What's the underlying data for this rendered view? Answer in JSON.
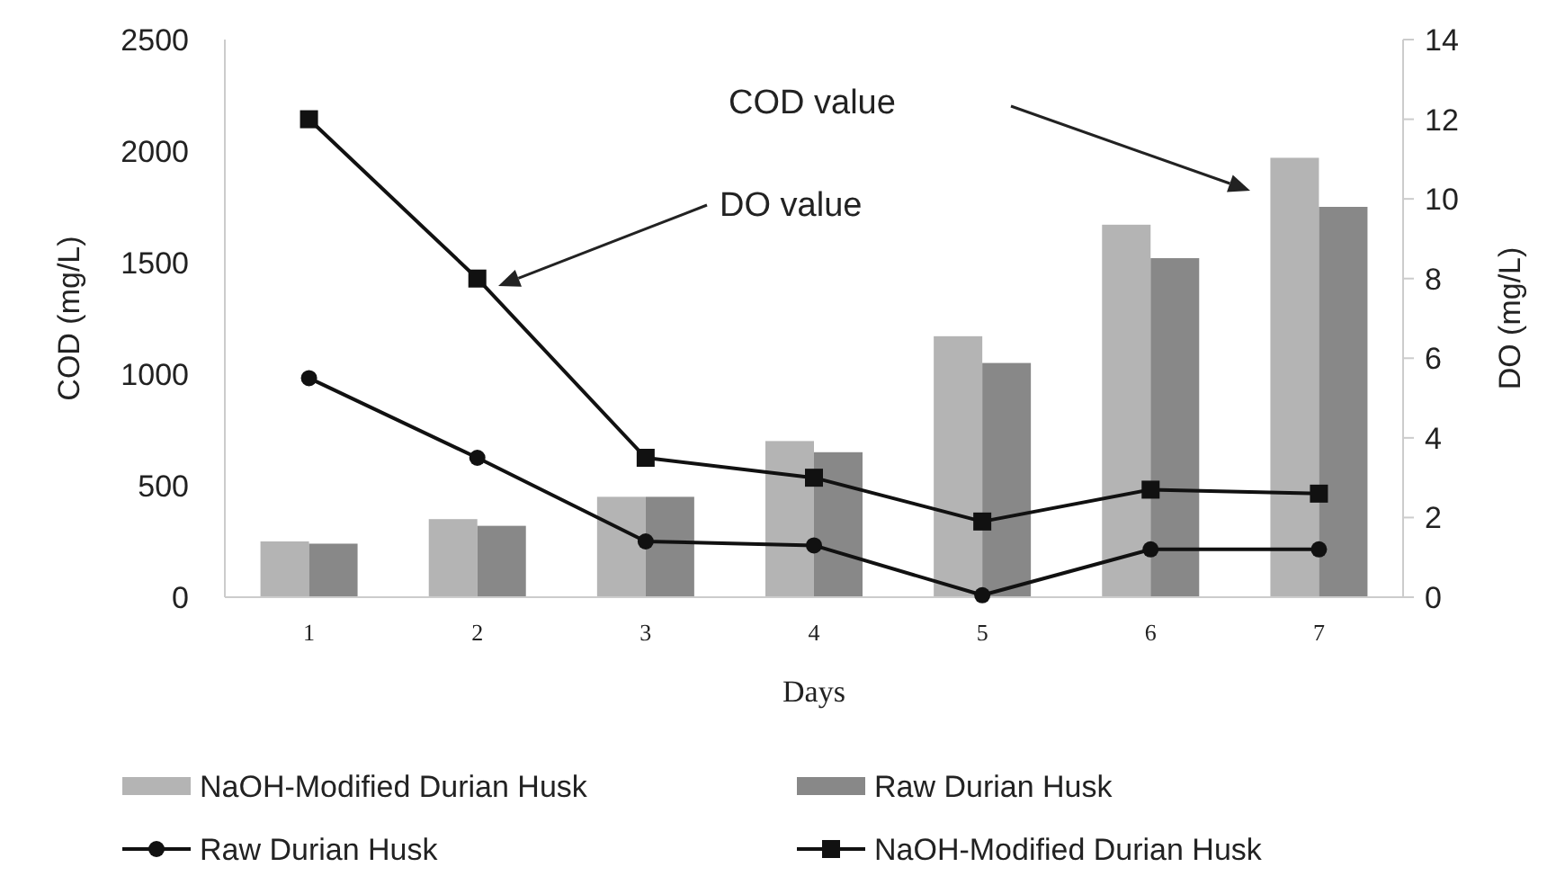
{
  "chart_data": {
    "type": "bar",
    "xlabel": "Days",
    "ylabel": "COD (mg/L)",
    "y2label": "DO (mg/L)",
    "categories": [
      "1",
      "2",
      "3",
      "4",
      "5",
      "6",
      "7"
    ],
    "series": [
      {
        "name": "NaOH-Modified Durian Husk",
        "color": "#b4b4b4",
        "values": [
          250,
          350,
          450,
          700,
          1170,
          1670,
          1970
        ]
      },
      {
        "name": "Raw Durian Husk",
        "color": "#888888",
        "values": [
          240,
          320,
          450,
          650,
          1050,
          1520,
          1750
        ]
      },
      {
        "name": "Raw Durian Husk",
        "type": "line",
        "axis": "y2",
        "marker": "circle",
        "color": "#111111",
        "values": [
          5.5,
          3.5,
          1.4,
          1.3,
          0.05,
          1.2,
          1.2
        ]
      },
      {
        "name": "NaOH-Modified Durian Husk",
        "type": "line",
        "axis": "y2",
        "marker": "square",
        "color": "#111111",
        "values": [
          12,
          8,
          3.5,
          3,
          1.9,
          2.7,
          2.6
        ]
      }
    ],
    "ylim": [
      0,
      2500
    ],
    "yticks": [
      0,
      500,
      1000,
      1500,
      2000,
      2500
    ],
    "y2lim": [
      0,
      14
    ],
    "y2ticks": [
      0,
      2,
      4,
      6,
      8,
      10,
      12,
      14
    ],
    "annotations": [
      "COD value",
      "DO value"
    ],
    "grid": false,
    "legend": "bottom"
  }
}
